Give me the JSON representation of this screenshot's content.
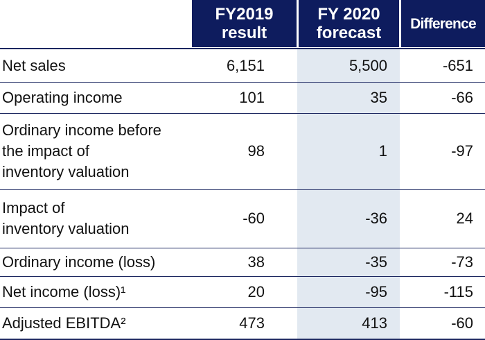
{
  "header": {
    "col1_line1": "FY2019",
    "col1_line2": "result",
    "col2_line1": "FY 2020",
    "col2_line2": "forecast",
    "col3": "Difference"
  },
  "rows": [
    {
      "label": "Net sales",
      "fy2019": "6,151",
      "fy2020": "5,500",
      "diff": "-651"
    },
    {
      "label": "Operating income",
      "fy2019": "101",
      "fy2020": "35",
      "diff": "-66"
    },
    {
      "label": "Ordinary income before\nthe impact of\ninventory valuation",
      "fy2019": "98",
      "fy2020": "1",
      "diff": "-97"
    },
    {
      "label": "Impact of\ninventory valuation",
      "fy2019": "-60",
      "fy2020": "-36",
      "diff": "24"
    },
    {
      "label": "Ordinary income (loss)",
      "fy2019": "38",
      "fy2020": "-35",
      "diff": "-73"
    },
    {
      "label": "Net income (loss)¹",
      "fy2019": "20",
      "fy2020": "-95",
      "diff": "-115"
    },
    {
      "label": "Adjusted EBITDA²",
      "fy2019": "473",
      "fy2020": "413",
      "diff": "-60"
    }
  ],
  "colors": {
    "header_bg": "#0e1c5e",
    "forecast_shade": "#e2e9f1",
    "rule": "#1c2760"
  }
}
